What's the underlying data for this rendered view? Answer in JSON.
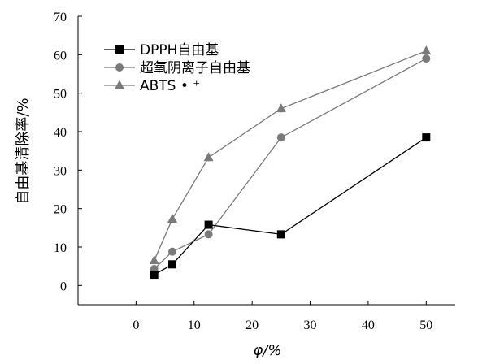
{
  "chart_data": {
    "type": "line",
    "xlabel": "φ/%",
    "ylabel": "自由基清除率/%",
    "xlim": [
      -10,
      55
    ],
    "ylim": [
      -5,
      70
    ],
    "xticks": [
      0,
      10,
      20,
      30,
      40,
      50
    ],
    "yticks": [
      0,
      10,
      20,
      30,
      40,
      50,
      60,
      70
    ],
    "grid": false,
    "legend_position": "top-left",
    "series": [
      {
        "name": "DPPH自由基",
        "marker": "square",
        "color": "#000000",
        "x": [
          3.125,
          6.25,
          12.5,
          25,
          50
        ],
        "y": [
          2.8,
          5.5,
          15.8,
          13.3,
          38.5
        ]
      },
      {
        "name": "超氧阴离子自由基",
        "marker": "circle",
        "color": "#7a7a7a",
        "x": [
          3.125,
          6.25,
          12.5,
          25,
          50
        ],
        "y": [
          4.3,
          8.8,
          13.3,
          38.5,
          59.0
        ]
      },
      {
        "name": "ABTS • ⁺",
        "marker": "triangle",
        "color": "#7a7a7a",
        "x": [
          3.125,
          6.25,
          12.5,
          25,
          50
        ],
        "y": [
          6.5,
          17.3,
          33.3,
          46.0,
          61.0
        ]
      }
    ]
  }
}
